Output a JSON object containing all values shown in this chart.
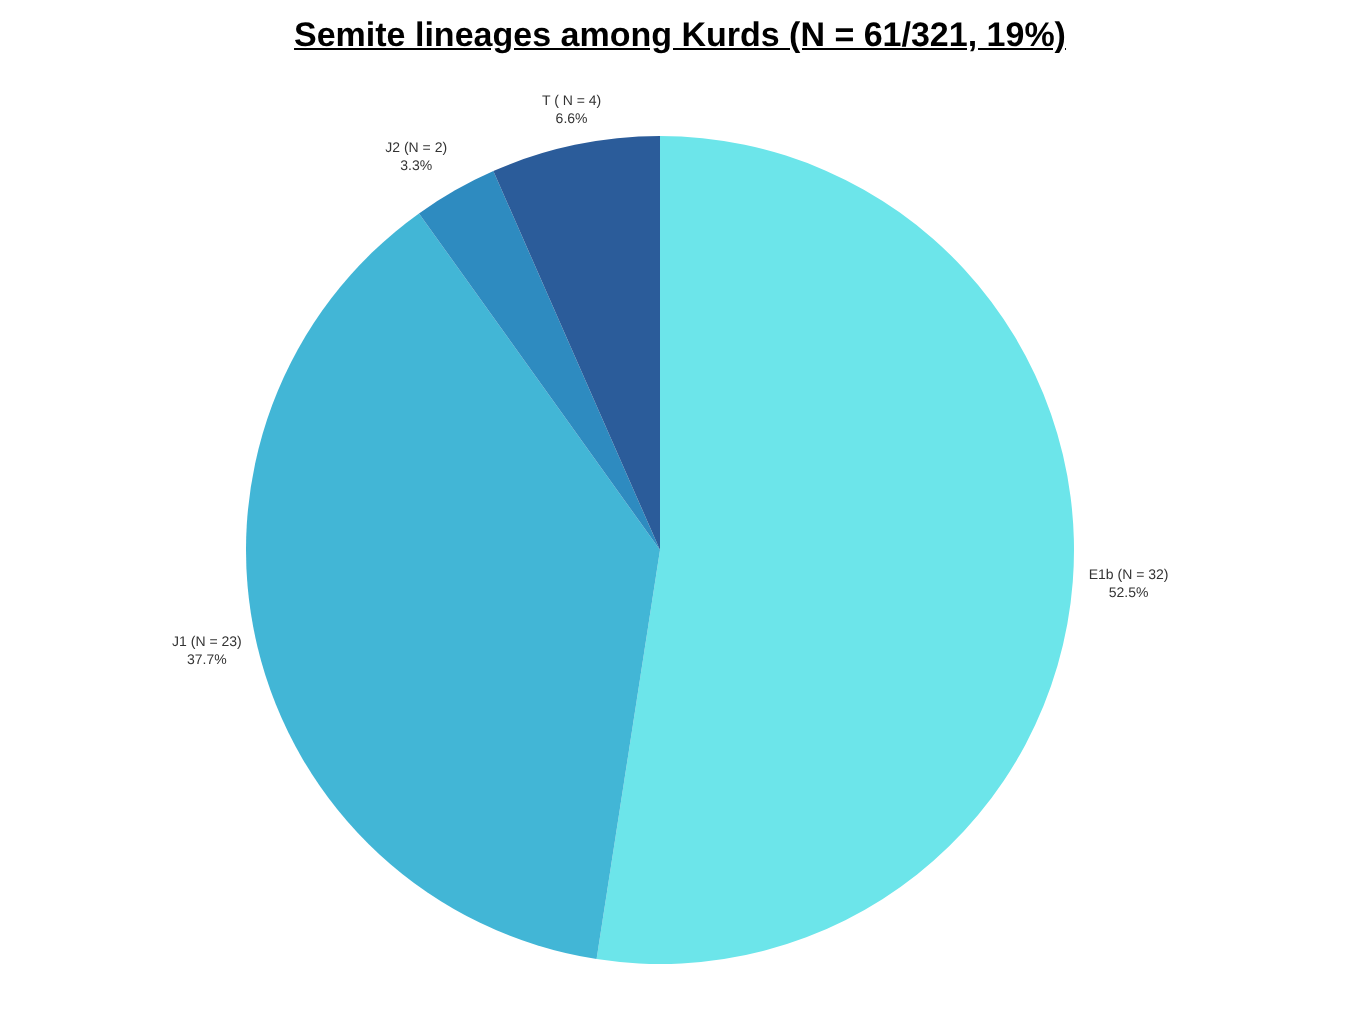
{
  "chart_data": {
    "type": "pie",
    "title": "Semite lineages among Kurds (N = 61/321, 19%)",
    "categories": [
      "E1b (N = 32)",
      "J1 (N = 23)",
      "J2 (N = 2)",
      "T ( N = 4)"
    ],
    "values": [
      52.5,
      37.7,
      3.3,
      6.6
    ],
    "value_labels": [
      "52.5%",
      "37.7%",
      "3.3%",
      "6.6%"
    ],
    "colors": [
      "#6ce5ea",
      "#42b6d6",
      "#2e8bc0",
      "#2b5c9a"
    ],
    "legend": false
  }
}
